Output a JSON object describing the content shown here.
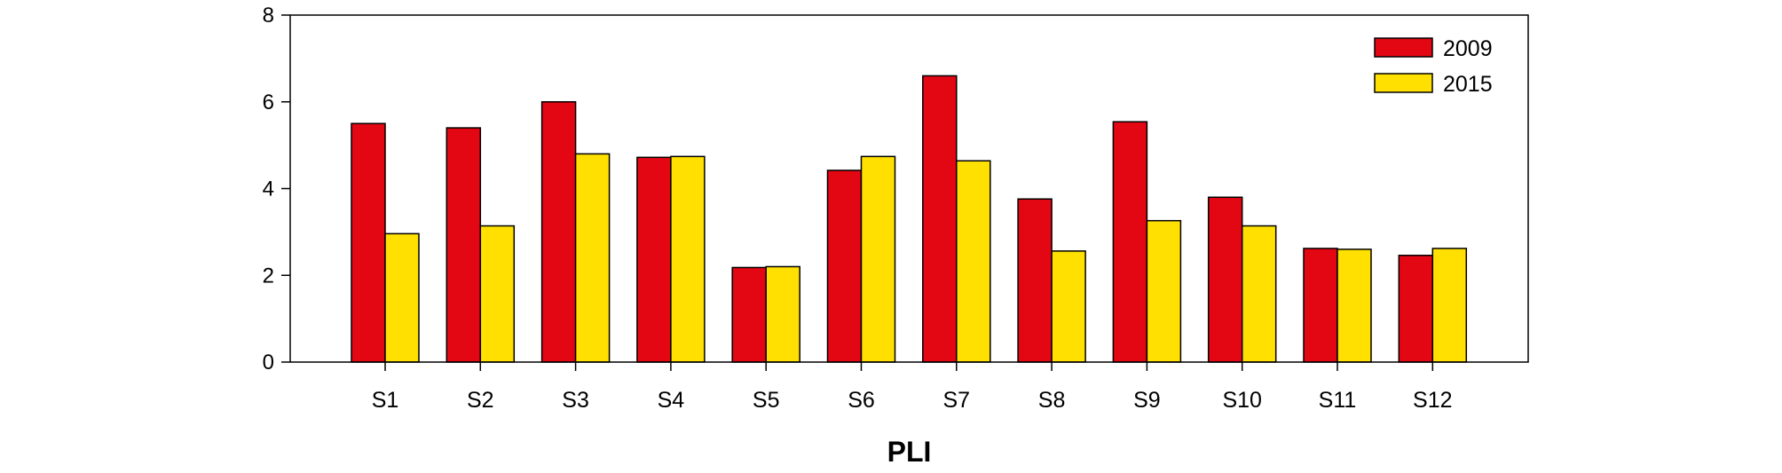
{
  "chart_data": {
    "type": "bar",
    "title": "",
    "xlabel": "PLI",
    "ylabel": "",
    "ylim": [
      0,
      8
    ],
    "yticks": [
      0,
      2,
      4,
      6,
      8
    ],
    "categories": [
      "S1",
      "S2",
      "S3",
      "S4",
      "S5",
      "S6",
      "S7",
      "S8",
      "S9",
      "S10",
      "S11",
      "S12"
    ],
    "series": [
      {
        "name": "2009",
        "color": "#e30613",
        "values": [
          5.5,
          5.4,
          6.0,
          4.72,
          2.18,
          4.42,
          6.6,
          3.76,
          5.54,
          3.8,
          2.62,
          2.46
        ]
      },
      {
        "name": "2015",
        "color": "#ffe000",
        "values": [
          2.96,
          3.14,
          4.8,
          4.74,
          2.2,
          4.74,
          4.64,
          2.56,
          3.26,
          3.14,
          2.6,
          2.62
        ]
      }
    ],
    "grid": false,
    "legend_position": "top-right"
  }
}
